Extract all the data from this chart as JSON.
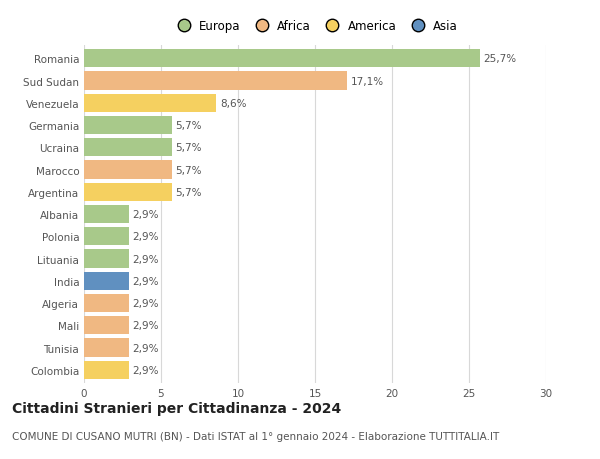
{
  "categories": [
    "Romania",
    "Sud Sudan",
    "Venezuela",
    "Germania",
    "Ucraina",
    "Marocco",
    "Argentina",
    "Albania",
    "Polonia",
    "Lituania",
    "India",
    "Algeria",
    "Mali",
    "Tunisia",
    "Colombia"
  ],
  "values": [
    25.7,
    17.1,
    8.6,
    5.7,
    5.7,
    5.7,
    5.7,
    2.9,
    2.9,
    2.9,
    2.9,
    2.9,
    2.9,
    2.9,
    2.9
  ],
  "labels": [
    "25,7%",
    "17,1%",
    "8,6%",
    "5,7%",
    "5,7%",
    "5,7%",
    "5,7%",
    "2,9%",
    "2,9%",
    "2,9%",
    "2,9%",
    "2,9%",
    "2,9%",
    "2,9%",
    "2,9%"
  ],
  "continent": [
    "Europa",
    "Africa",
    "America",
    "Europa",
    "Europa",
    "Africa",
    "America",
    "Europa",
    "Europa",
    "Europa",
    "Asia",
    "Africa",
    "Africa",
    "Africa",
    "America"
  ],
  "colors": {
    "Europa": "#a8c98a",
    "Africa": "#f0b882",
    "America": "#f5d060",
    "Asia": "#6090c0"
  },
  "xlim": [
    0,
    30
  ],
  "xticks": [
    0,
    5,
    10,
    15,
    20,
    25,
    30
  ],
  "title": "Cittadini Stranieri per Cittadinanza - 2024",
  "subtitle": "COMUNE DI CUSANO MUTRI (BN) - Dati ISTAT al 1° gennaio 2024 - Elaborazione TUTTITALIA.IT",
  "bg_color": "#ffffff",
  "grid_color": "#d8d8d8",
  "bar_height": 0.82,
  "title_fontsize": 10,
  "subtitle_fontsize": 7.5,
  "label_fontsize": 7.5,
  "tick_fontsize": 7.5,
  "legend_fontsize": 8.5,
  "legend_order": [
    "Europa",
    "Africa",
    "America",
    "Asia"
  ]
}
